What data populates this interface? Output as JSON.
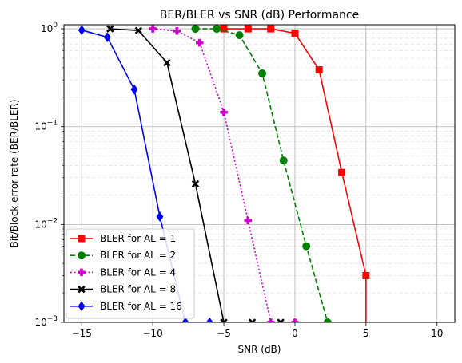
{
  "chart_data": {
    "type": "line",
    "title": "BER/BLER vs SNR (dB) Performance",
    "xlabel": "SNR (dB)",
    "ylabel": "Bit/Block error rate (BER/BLER)",
    "xlim": [
      -16.25,
      11.25
    ],
    "ylim": [
      0.001,
      1.1
    ],
    "yscale": "log",
    "xticks": [
      -15,
      -10,
      -5,
      0,
      5,
      10
    ],
    "xtick_labels": [
      "−15",
      "−10",
      "−5",
      "0",
      "5",
      "10"
    ],
    "grid": true,
    "legend_position": "lower-left",
    "series": [
      {
        "name": "BLER for AL = 1",
        "color": "#ff0000",
        "linestyle": "solid",
        "marker": "square",
        "x": [
          -5.0,
          -3.3,
          -1.7,
          0.0,
          1.7,
          3.3,
          5.0,
          5.0
        ],
        "y": [
          1.0,
          1.0,
          1.0,
          0.9,
          0.38,
          0.034,
          0.003,
          0.0007
        ]
      },
      {
        "name": "BLER for AL = 2",
        "color": "#008000",
        "linestyle": "dashed",
        "marker": "circle",
        "x": [
          -7.0,
          -5.5,
          -3.9,
          -2.3,
          -0.8,
          0.8,
          2.3
        ],
        "y": [
          1.0,
          1.0,
          0.86,
          0.35,
          0.045,
          0.006,
          0.001
        ]
      },
      {
        "name": "BLER for AL = 4",
        "color": "#cc00cc",
        "linestyle": "dotted",
        "marker": "plus",
        "x": [
          -10.0,
          -8.3,
          -6.7,
          -5.0,
          -3.3,
          -1.7,
          0.0
        ],
        "y": [
          1.0,
          0.95,
          0.72,
          0.14,
          0.011,
          0.001,
          0.001
        ]
      },
      {
        "name": "BLER for AL = 8",
        "color": "#000000",
        "linestyle": "solid",
        "marker": "x",
        "x": [
          -13.0,
          -11.0,
          -9.0,
          -7.0,
          -5.0,
          -3.0,
          -1.0
        ],
        "y": [
          1.0,
          0.96,
          0.45,
          0.026,
          0.001,
          0.001,
          0.001
        ]
      },
      {
        "name": "BLER for AL = 16",
        "color": "#0000ff",
        "linestyle": "solid",
        "marker": "diamond",
        "x": [
          -15.0,
          -13.2,
          -11.3,
          -9.5,
          -7.7,
          -6.0
        ],
        "y": [
          0.97,
          0.82,
          0.24,
          0.012,
          0.001,
          0.001
        ]
      }
    ]
  }
}
